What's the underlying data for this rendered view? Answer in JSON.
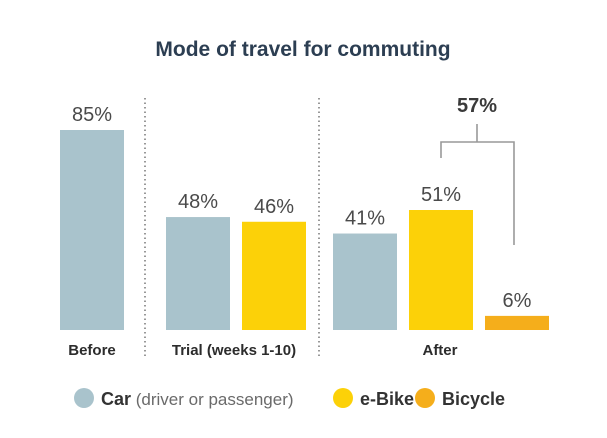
{
  "chart_data": {
    "type": "bar",
    "title": "Mode of travel for commuting",
    "groups": [
      {
        "label": "Before",
        "bars": [
          {
            "series": "Car",
            "value": 85,
            "label": "85%"
          }
        ]
      },
      {
        "label": "Trial (weeks 1-10)",
        "bars": [
          {
            "series": "Car",
            "value": 48,
            "label": "48%"
          },
          {
            "series": "e-Bike",
            "value": 46,
            "label": "46%"
          }
        ]
      },
      {
        "label": "After",
        "bars": [
          {
            "series": "Car",
            "value": 41,
            "label": "41%"
          },
          {
            "series": "e-Bike",
            "value": 51,
            "label": "51%"
          },
          {
            "series": "Bicycle",
            "value": 6,
            "label": "6%"
          }
        ]
      }
    ],
    "annotation": {
      "label": "57%",
      "group": "After",
      "spans_series": [
        "e-Bike",
        "Bicycle"
      ]
    },
    "legend": {
      "placement": "bottom",
      "items": [
        {
          "series": "Car",
          "label": "Car",
          "sublabel": "(driver or passenger)",
          "color": "#a9c3cc"
        },
        {
          "series": "e-Bike",
          "label": "e-Bike",
          "sublabel": "",
          "color": "#fcd108"
        },
        {
          "series": "Bicycle",
          "label": "Bicycle",
          "sublabel": "",
          "color": "#f5ae1b"
        }
      ]
    },
    "ylim": [
      0,
      100
    ],
    "grid": false,
    "xlabel": "",
    "ylabel": ""
  }
}
